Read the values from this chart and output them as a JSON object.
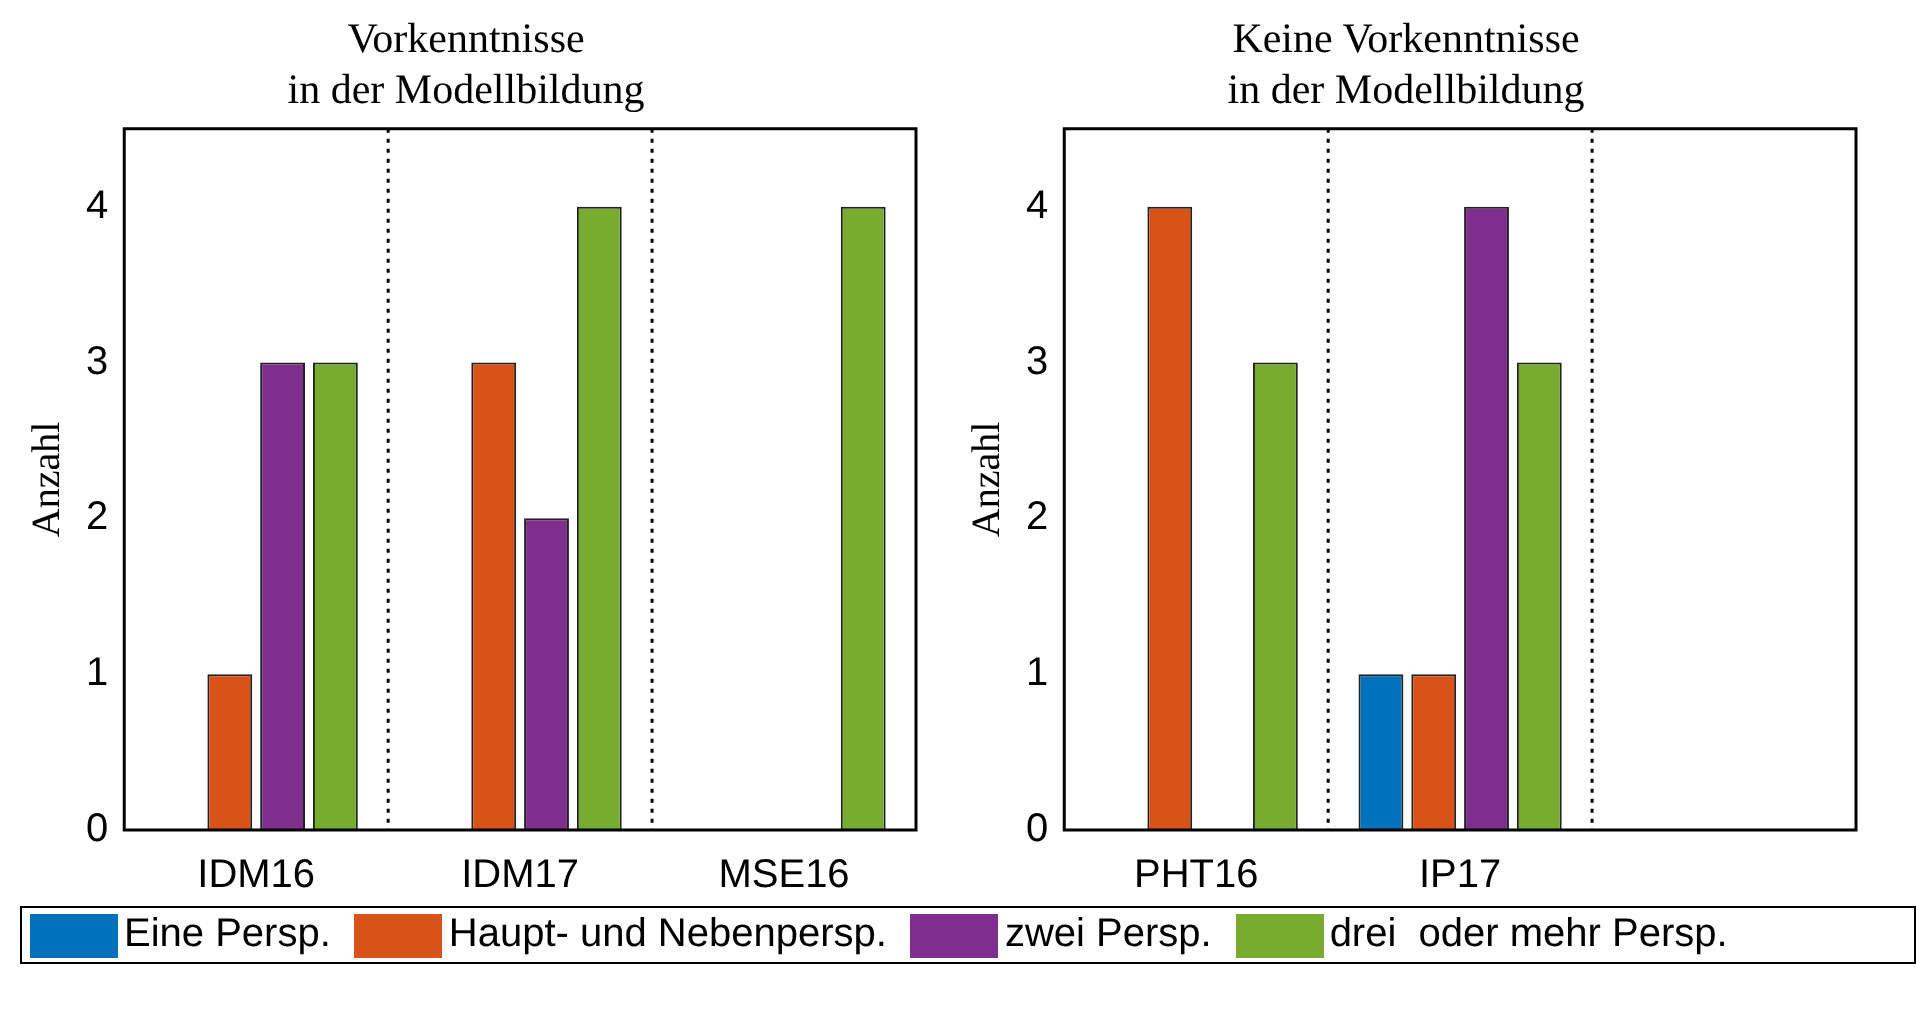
{
  "chart_data": [
    {
      "type": "bar",
      "title": "Vorkenntnisse\nin der Modellbildung",
      "ylabel": "Anzahl",
      "categories": [
        "IDM16",
        "IDM17",
        "MSE16"
      ],
      "series": [
        {
          "name": "Eine Persp.",
          "color": "#0072bd",
          "values": [
            0,
            0,
            0
          ]
        },
        {
          "name": "Haupt- und Nebenpersp.",
          "color": "#d95319",
          "values": [
            1,
            3,
            0
          ]
        },
        {
          "name": "zwei Persp.",
          "color": "#7e2f8e",
          "values": [
            3,
            2,
            0
          ]
        },
        {
          "name": "drei  oder mehr Persp.",
          "color": "#77ac30",
          "values": [
            3,
            4,
            4
          ]
        }
      ],
      "ylim": [
        0,
        4.5
      ],
      "yticks": [
        0,
        1,
        2,
        3,
        4
      ],
      "grid": "x",
      "legend": "bottom"
    },
    {
      "type": "bar",
      "title": "Keine Vorkenntnisse\nin der Modellbildung",
      "ylabel": "Anzahl",
      "categories": [
        "PHT16",
        "IP17",
        null
      ],
      "series": [
        {
          "color": "#0072bd",
          "values": [
            0,
            1,
            null
          ]
        },
        {
          "color": "#d95319",
          "values": [
            4,
            1,
            null
          ]
        },
        {
          "color": "#7e2f8e",
          "values": [
            0,
            4,
            null
          ]
        },
        {
          "color": "#77ac30",
          "values": [
            3,
            3,
            null
          ]
        }
      ],
      "ylim": [
        0,
        4.5
      ],
      "yticks": [
        0,
        1,
        2,
        3,
        4
      ],
      "grid": "x"
    }
  ]
}
